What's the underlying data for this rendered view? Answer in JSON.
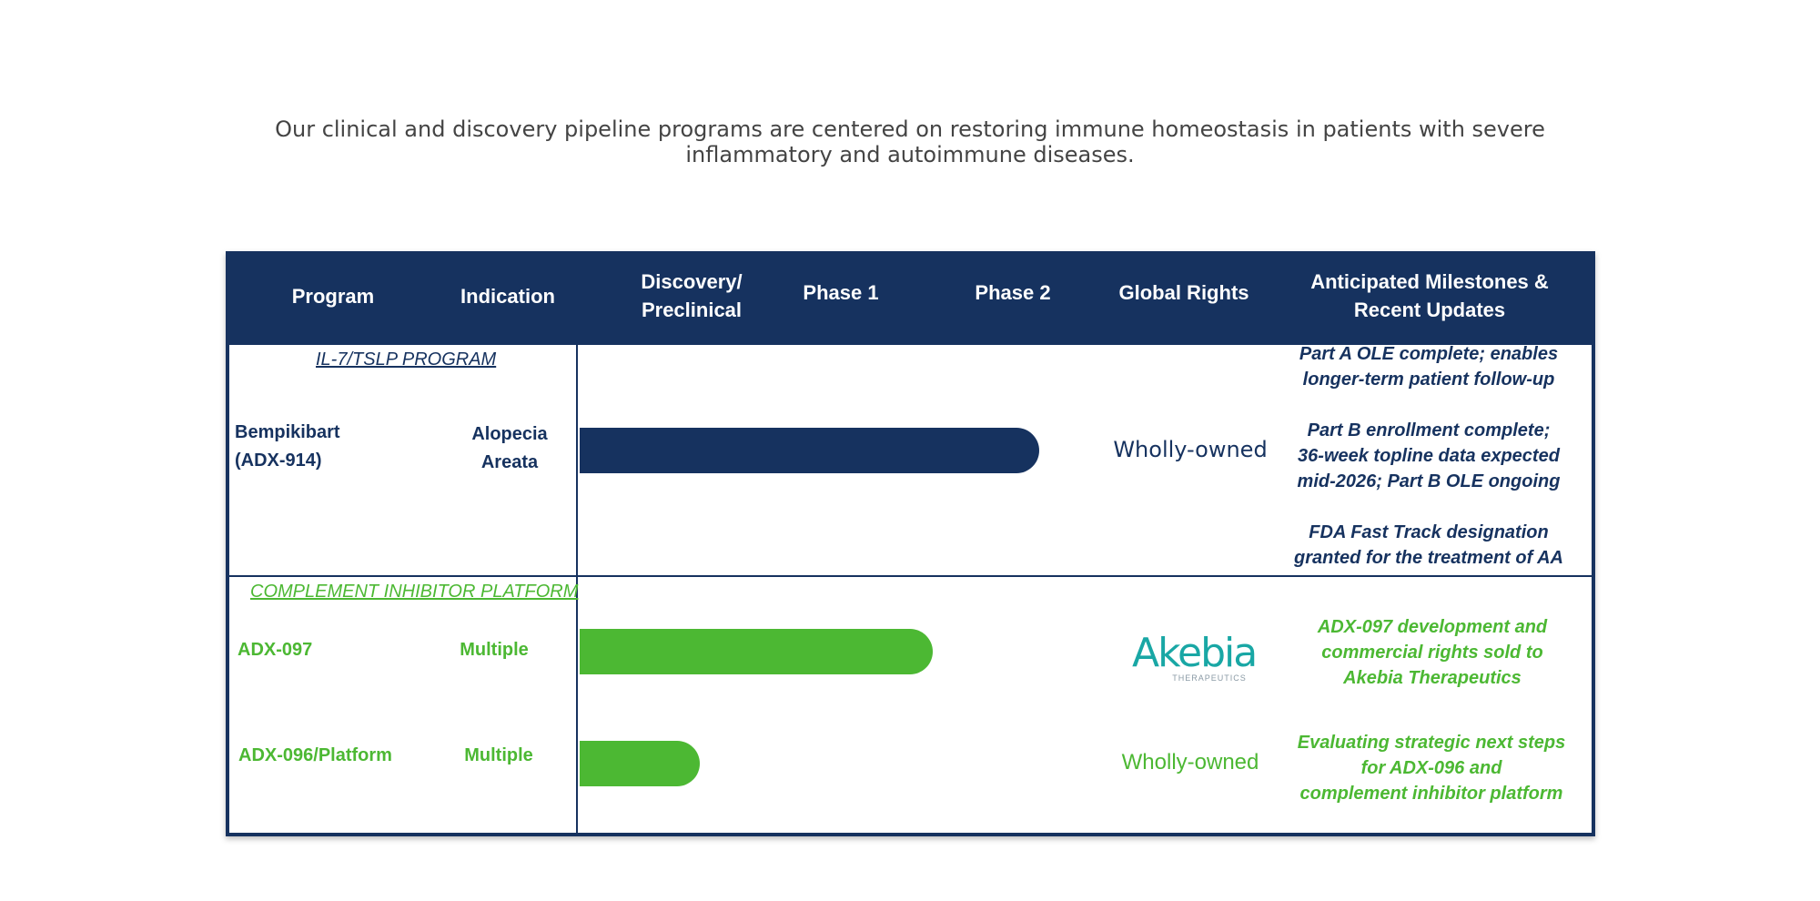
{
  "intro_text": "Our clinical and discovery pipeline programs are centered on restoring immune homeostasis in patients with severe inflammatory and autoimmune diseases.",
  "header": {
    "program": "Program",
    "indication": "Indication",
    "discovery_line1": "Discovery/",
    "discovery_line2": "Preclinical",
    "phase1": "Phase 1",
    "phase2": "Phase 2",
    "global_rights": "Global Rights",
    "milestones_line1": "Anticipated Milestones &",
    "milestones_line2": "Recent Updates"
  },
  "sections": [
    {
      "title": "IL-7/TSLP PROGRAM",
      "programs": [
        {
          "name_line1": "Bempikibart",
          "name_line2": "(ADX-914)",
          "indication_line1": "Alopecia",
          "indication_line2": "Areata",
          "stage_progress": "Phase 2",
          "rights": "Wholly-owned",
          "milestones": [
            "Part A OLE complete; enables",
            "longer-term patient follow-up",
            "Part B enrollment complete;",
            "36-week topline data expected",
            "mid-2026; Part B OLE ongoing",
            "FDA Fast Track designation",
            "granted for the treatment of AA"
          ]
        }
      ]
    },
    {
      "title": "COMPLEMENT INHIBITOR PLATFORM",
      "programs": [
        {
          "name": "ADX-097",
          "indication": "Multiple",
          "stage_progress": "Phase 1/2",
          "rights_logo": "Akebia",
          "rights_logo_sub": "THERAPEUTICS",
          "milestones": [
            "ADX-097 development and",
            "commercial rights sold to",
            "Akebia Therapeutics"
          ]
        },
        {
          "name": "ADX-096/Platform",
          "indication": "Multiple",
          "stage_progress": "Discovery/Preclinical",
          "rights": "Wholly-owned",
          "milestones": [
            "Evaluating strategic next steps",
            "for ADX-096 and",
            "complement inhibitor platform"
          ]
        }
      ]
    }
  ],
  "colors": {
    "navy": "#16325f",
    "green": "#4cb833",
    "akebia_teal": "#19a7a5"
  }
}
